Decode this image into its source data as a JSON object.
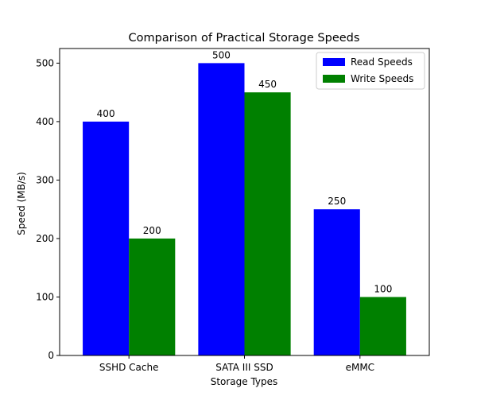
{
  "chart_data": {
    "type": "bar",
    "title": "Comparison of Practical Storage Speeds",
    "xlabel": "Storage Types",
    "ylabel": "Speed (MB/s)",
    "categories": [
      "SSHD Cache",
      "SATA III SSD",
      "eMMC"
    ],
    "series": [
      {
        "name": "Read Speeds",
        "values": [
          400,
          500,
          250
        ],
        "color": "#0000ff"
      },
      {
        "name": "Write Speeds",
        "values": [
          200,
          450,
          100
        ],
        "color": "#008000"
      }
    ],
    "ylim": [
      0,
      525
    ],
    "yticks": [
      0,
      100,
      200,
      300,
      400,
      500
    ],
    "grid": false,
    "legend_position": "top-right"
  }
}
